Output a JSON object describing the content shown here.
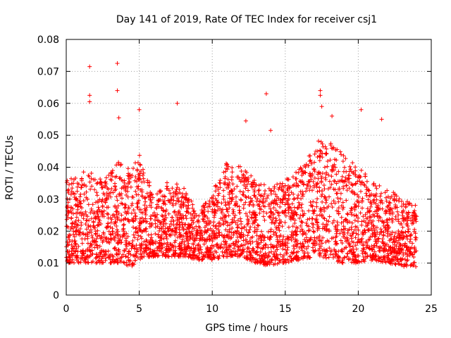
{
  "chart_data": {
    "type": "scatter",
    "title": "Day 141 of 2019, Rate Of TEC Index for receiver csj1",
    "xlabel": "GPS time / hours",
    "ylabel": "ROTI / TECUs",
    "xlim": [
      0,
      25
    ],
    "ylim": [
      0,
      0.08
    ],
    "xticks": [
      "0",
      "5",
      "10",
      "15",
      "20",
      "25"
    ],
    "yticks": [
      "0",
      "0.01",
      "0.02",
      "0.03",
      "0.04",
      "0.05",
      "0.06",
      "0.07",
      "0.08"
    ],
    "grid": true,
    "marker": "+",
    "color": "#ff0000",
    "trend": {
      "x": [
        0,
        1,
        1.5,
        2,
        3,
        3.5,
        4.5,
        5,
        6,
        7,
        8,
        9,
        10,
        11,
        12,
        13,
        14,
        15,
        16,
        17,
        17.5,
        18,
        19,
        20,
        21,
        22,
        23,
        24
      ],
      "low": [
        0.01,
        0.01,
        0.01,
        0.01,
        0.01,
        0.01,
        0.009,
        0.011,
        0.012,
        0.012,
        0.012,
        0.011,
        0.011,
        0.012,
        0.012,
        0.01,
        0.009,
        0.01,
        0.011,
        0.012,
        0.012,
        0.011,
        0.01,
        0.01,
        0.011,
        0.01,
        0.009,
        0.008
      ],
      "high": [
        0.036,
        0.038,
        0.04,
        0.036,
        0.038,
        0.042,
        0.04,
        0.044,
        0.032,
        0.036,
        0.034,
        0.026,
        0.032,
        0.042,
        0.04,
        0.036,
        0.034,
        0.036,
        0.04,
        0.046,
        0.05,
        0.048,
        0.044,
        0.04,
        0.036,
        0.034,
        0.03,
        0.028
      ]
    },
    "outliers": [
      {
        "x": 1.6,
        "y": 0.0715
      },
      {
        "x": 1.6,
        "y": 0.0625
      },
      {
        "x": 1.6,
        "y": 0.0605
      },
      {
        "x": 3.5,
        "y": 0.0725
      },
      {
        "x": 3.5,
        "y": 0.064
      },
      {
        "x": 3.6,
        "y": 0.0555
      },
      {
        "x": 5.0,
        "y": 0.058
      },
      {
        "x": 7.6,
        "y": 0.06
      },
      {
        "x": 13.7,
        "y": 0.063
      },
      {
        "x": 17.4,
        "y": 0.064
      },
      {
        "x": 17.4,
        "y": 0.0625
      },
      {
        "x": 17.5,
        "y": 0.059
      },
      {
        "x": 18.2,
        "y": 0.056
      },
      {
        "x": 20.2,
        "y": 0.058
      },
      {
        "x": 21.6,
        "y": 0.055
      },
      {
        "x": 14.0,
        "y": 0.0515
      },
      {
        "x": 12.3,
        "y": 0.0545
      }
    ]
  }
}
